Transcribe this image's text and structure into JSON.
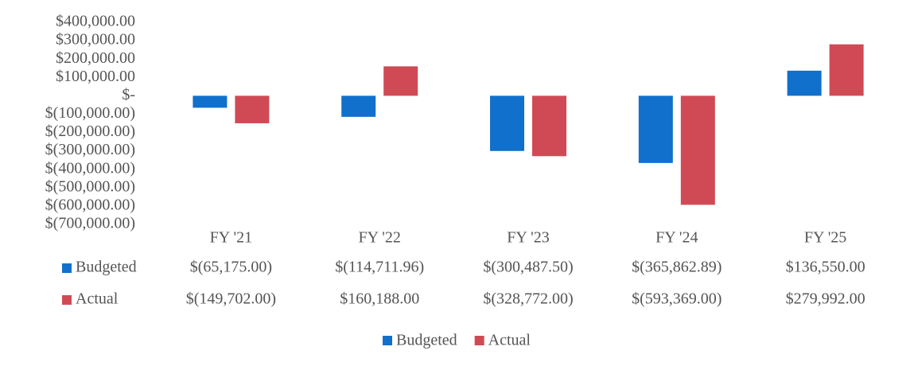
{
  "chart_data": {
    "type": "bar",
    "categories": [
      "FY '21",
      "FY '22",
      "FY '23",
      "FY '24",
      "FY '25"
    ],
    "series": [
      {
        "name": "Budgeted",
        "color": "#1070cc",
        "values": [
          -65175,
          -114711.96,
          -300487.5,
          -365862.89,
          136550
        ],
        "value_labels": [
          "$(65,175.00)",
          "$(114,711.96)",
          "$(300,487.50)",
          "$(365,862.89)",
          "$136,550.00"
        ]
      },
      {
        "name": "Actual",
        "color": "#d04a55",
        "values": [
          -149702,
          160188,
          -328772,
          -593369,
          279992
        ],
        "value_labels": [
          "$(149,702.00)",
          "$160,188.00",
          "$(328,772.00)",
          "$(593,369.00)",
          "$279,992.00"
        ]
      }
    ],
    "ylim": [
      -700000,
      400000
    ],
    "yticks": [
      {
        "value": 400000,
        "label": "$400,000.00"
      },
      {
        "value": 300000,
        "label": "$300,000.00"
      },
      {
        "value": 200000,
        "label": "$200,000.00"
      },
      {
        "value": 100000,
        "label": "$100,000.00"
      },
      {
        "value": 0,
        "label": "$-"
      },
      {
        "value": -100000,
        "label": "$(100,000.00)"
      },
      {
        "value": -200000,
        "label": "$(200,000.00)"
      },
      {
        "value": -300000,
        "label": "$(300,000.00)"
      },
      {
        "value": -400000,
        "label": "$(400,000.00)"
      },
      {
        "value": -500000,
        "label": "$(500,000.00)"
      },
      {
        "value": -600000,
        "label": "$(600,000.00)"
      },
      {
        "value": -700000,
        "label": "$(700,000.00)"
      }
    ],
    "grid": false,
    "legend": "bottom",
    "data_table": true
  }
}
